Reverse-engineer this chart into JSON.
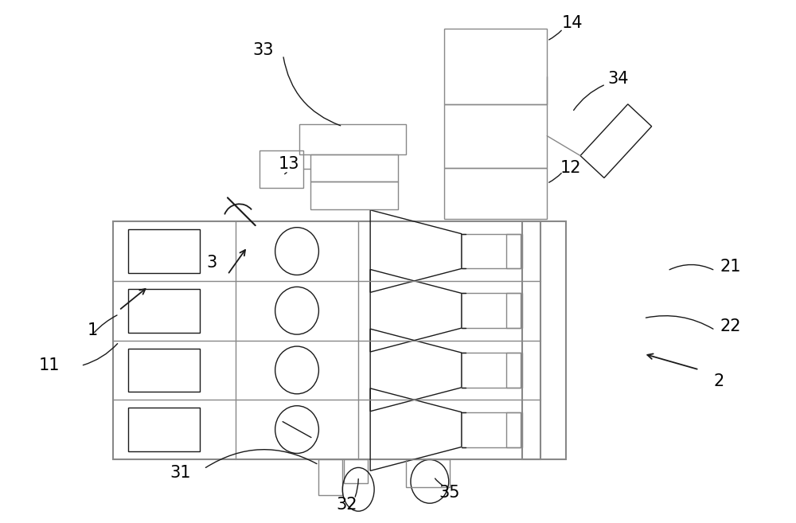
{
  "bg_color": "#ffffff",
  "line_color": "#1a1a1a",
  "gray_color": "#888888",
  "fig_width": 10.0,
  "fig_height": 6.57,
  "dpi": 100
}
